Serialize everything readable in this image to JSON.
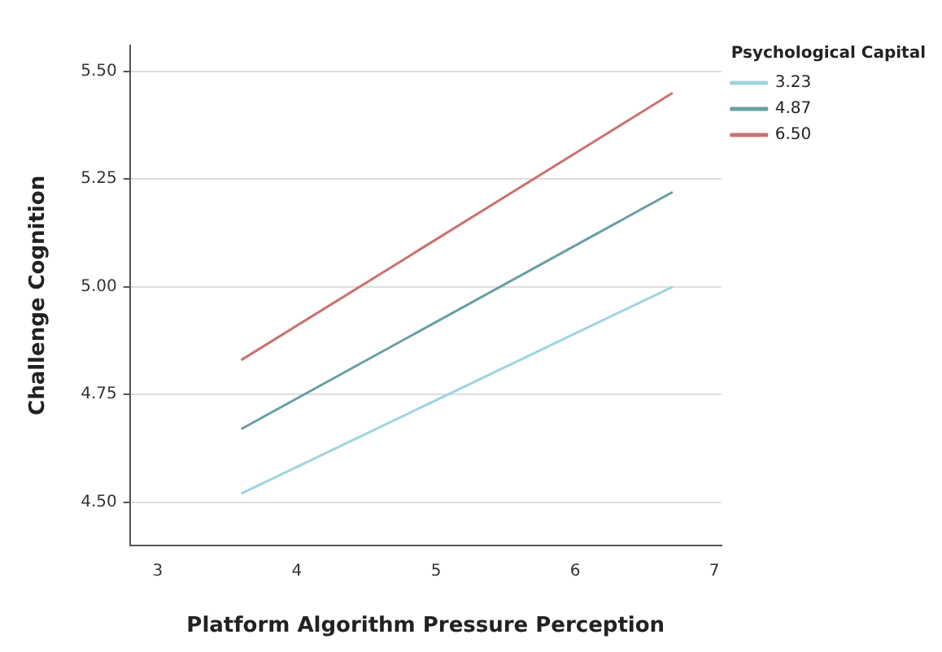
{
  "chart_data": {
    "type": "line",
    "xlabel": "Platform Algorithm Pressure Perception",
    "ylabel": "Challenge Cognition",
    "legend_title": "Psychological Capital",
    "legend": "top right",
    "grid": "y",
    "marker": "none",
    "line_style": "solid",
    "x": [
      3.6,
      6.7
    ],
    "series": [
      {
        "name": "3.23",
        "color": "#9fd4df",
        "values": [
          4.52,
          5.0
        ]
      },
      {
        "name": "4.87",
        "color": "#6a9fa3",
        "values": [
          4.67,
          5.22
        ]
      },
      {
        "name": "6.50",
        "color": "#c9736f",
        "values": [
          4.83,
          5.45
        ]
      }
    ],
    "xlim": [
      2.8,
      7.05
    ],
    "xticks": [
      3,
      4,
      5,
      6,
      7
    ],
    "ylim": [
      4.4,
      5.56
    ],
    "yticks": [
      {
        "value": 4.5,
        "label": "4.50"
      },
      {
        "value": 4.75,
        "label": "4.75"
      },
      {
        "value": 5,
        "label": "5.00"
      },
      {
        "value": 5.25,
        "label": "5.25"
      },
      {
        "value": 5.5,
        "label": "5.50"
      }
    ]
  }
}
